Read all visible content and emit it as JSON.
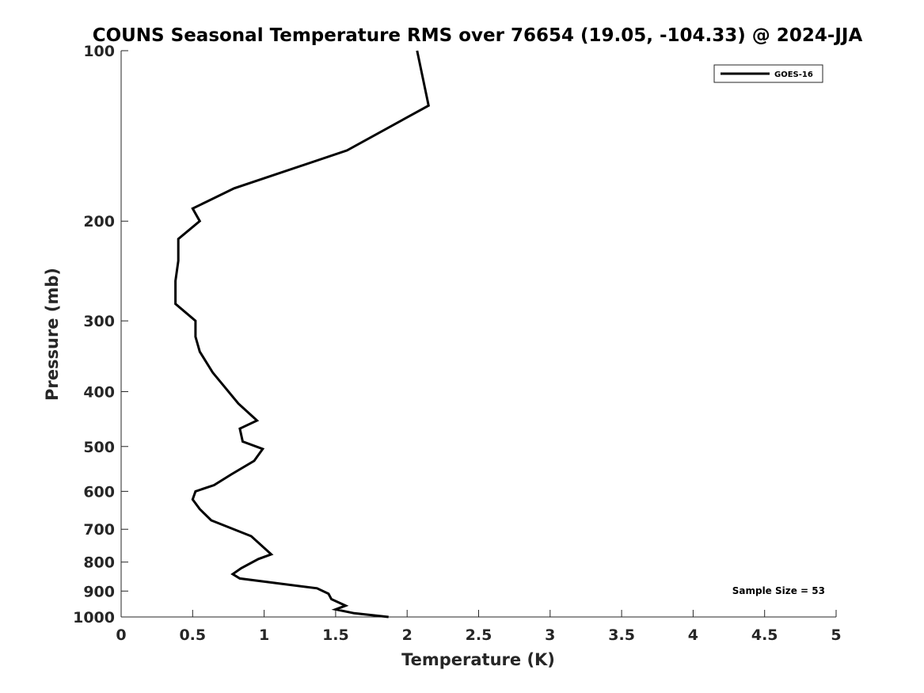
{
  "chart_data": {
    "type": "line",
    "title": "COUNS Seasonal Temperature RMS over 76654 (19.05, -104.33) @ 2024-JJA",
    "xlabel": "Temperature (K)",
    "ylabel": "Pressure (mb)",
    "xlim": [
      0,
      5
    ],
    "ylim": [
      100,
      1000
    ],
    "y_scale": "log",
    "y_reversed": true,
    "xticks": [
      0,
      0.5,
      1,
      1.5,
      2,
      2.5,
      3,
      3.5,
      4,
      4.5,
      5
    ],
    "xtick_labels": [
      "0",
      "0.5",
      "1",
      "1.5",
      "2",
      "2.5",
      "3",
      "3.5",
      "4",
      "4.5",
      "5"
    ],
    "yticks": [
      100,
      200,
      300,
      400,
      500,
      600,
      700,
      800,
      900,
      1000
    ],
    "ytick_labels": [
      "100",
      "200",
      "300",
      "400",
      "500",
      "600",
      "700",
      "800",
      "900",
      "1000"
    ],
    "legend_position": "top-right",
    "series": [
      {
        "name": "GOES-16",
        "color": "#000000",
        "points": [
          [
            2.07,
            100
          ],
          [
            2.15,
            125
          ],
          [
            1.58,
            150
          ],
          [
            0.79,
            175
          ],
          [
            0.5,
            190
          ],
          [
            0.55,
            200
          ],
          [
            0.4,
            215
          ],
          [
            0.4,
            235
          ],
          [
            0.38,
            255
          ],
          [
            0.38,
            280
          ],
          [
            0.52,
            300
          ],
          [
            0.52,
            320
          ],
          [
            0.55,
            340
          ],
          [
            0.64,
            370
          ],
          [
            0.82,
            420
          ],
          [
            0.95,
            450
          ],
          [
            0.83,
            465
          ],
          [
            0.85,
            490
          ],
          [
            0.99,
            505
          ],
          [
            0.93,
            530
          ],
          [
            0.77,
            560
          ],
          [
            0.65,
            585
          ],
          [
            0.52,
            600
          ],
          [
            0.5,
            620
          ],
          [
            0.55,
            645
          ],
          [
            0.63,
            675
          ],
          [
            0.91,
            720
          ],
          [
            1.05,
            775
          ],
          [
            0.96,
            790
          ],
          [
            0.84,
            820
          ],
          [
            0.78,
            840
          ],
          [
            0.83,
            855
          ],
          [
            1.37,
            890
          ],
          [
            1.45,
            910
          ],
          [
            1.47,
            930
          ],
          [
            1.57,
            955
          ],
          [
            1.5,
            970
          ],
          [
            1.63,
            985
          ],
          [
            1.87,
            1000
          ]
        ]
      }
    ],
    "annotations": [
      "Sample Size = 53"
    ]
  }
}
